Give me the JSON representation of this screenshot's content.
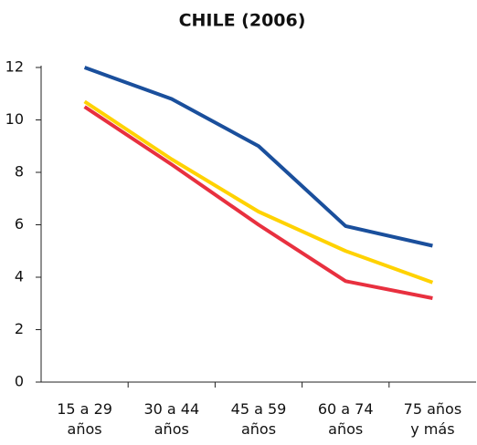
{
  "chart_data": {
    "type": "line",
    "title": "CHILE (2006)",
    "categories": [
      [
        "15 a 29",
        "años"
      ],
      [
        "30 a 44",
        "años"
      ],
      [
        "45 a 59",
        "años"
      ],
      [
        "60 a 74",
        "años"
      ],
      [
        "75 años",
        "y más"
      ]
    ],
    "series": [
      {
        "color": "#1a4f9c",
        "values": [
          12,
          10.8,
          9,
          5.95,
          5.2
        ]
      },
      {
        "color": "#ffd200",
        "values": [
          10.7,
          8.5,
          6.5,
          5,
          3.8
        ]
      },
      {
        "color": "#e8303f",
        "values": [
          10.5,
          8.3,
          6,
          3.85,
          3.2
        ]
      }
    ],
    "ylim": [
      0,
      12
    ],
    "yticks": [
      0,
      2,
      4,
      6,
      8,
      10,
      12
    ],
    "grid": false
  }
}
